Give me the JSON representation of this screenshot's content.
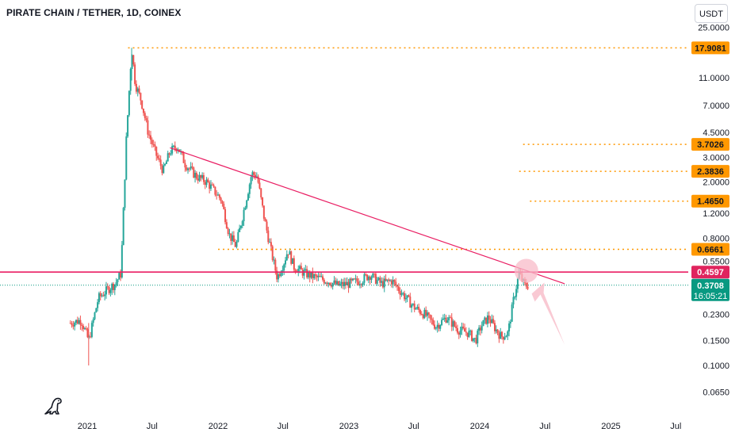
{
  "header": {
    "title": "PIRATE CHAIN / TETHER, 1D, COINEX",
    "unit_button": "USDT"
  },
  "colors": {
    "up": "#26a69a",
    "down": "#ef5350",
    "trendline": "#e91e63",
    "dotted_levels": "#ff9800",
    "last_price": "#089981",
    "arrow": "#f8bbc8"
  },
  "icons": [
    "dinosaur-logo-icon"
  ],
  "chart_data": {
    "type": "candlestick",
    "y_scale": "log",
    "x_ticks": [
      "2021",
      "Jul",
      "2022",
      "Jul",
      "2023",
      "Jul",
      "2024",
      "Jul",
      "2025",
      "Jul"
    ],
    "y_ticks": [
      "25.0000",
      "11.0000",
      "7.0000",
      "4.5000",
      "3.0000",
      "2.0000",
      "1.2000",
      "0.8000",
      "0.5500",
      "0.2300",
      "0.1500",
      "0.1000",
      "0.0650"
    ],
    "price_labels": [
      {
        "text": "17.9081",
        "value": 17.9081,
        "kind": "dotted-level"
      },
      {
        "text": "3.7026",
        "value": 3.7026,
        "kind": "dotted-level"
      },
      {
        "text": "2.3836",
        "value": 2.3836,
        "kind": "dotted-level"
      },
      {
        "text": "1.4650",
        "value": 1.465,
        "kind": "dotted-level"
      },
      {
        "text": "0.6661",
        "value": 0.6661,
        "kind": "dotted-level"
      },
      {
        "text": "0.4597",
        "value": 0.4597,
        "kind": "horizontal-line"
      },
      {
        "text": "0.3708",
        "value": 0.3708,
        "kind": "last-price",
        "sublabel": "16:05:21"
      }
    ],
    "trendline": {
      "start": {
        "date": "2021-08-20",
        "price": 3.5
      },
      "end": {
        "date": "2024-08-25",
        "price": 0.38
      }
    },
    "price_path": [
      [
        "2020-11-15",
        0.2
      ],
      [
        "2020-12-15",
        0.21
      ],
      [
        "2021-01-05",
        0.15
      ],
      [
        "2021-02-01",
        0.3
      ],
      [
        "2021-03-01",
        0.35
      ],
      [
        "2021-03-20",
        0.38
      ],
      [
        "2021-04-05",
        0.45
      ],
      [
        "2021-04-20",
        4.0
      ],
      [
        "2021-05-05",
        17.9
      ],
      [
        "2021-05-15",
        10.0
      ],
      [
        "2021-06-01",
        7.5
      ],
      [
        "2021-06-20",
        4.5
      ],
      [
        "2021-07-15",
        3.0
      ],
      [
        "2021-08-01",
        2.4
      ],
      [
        "2021-08-20",
        3.3
      ],
      [
        "2021-09-10",
        3.6
      ],
      [
        "2021-10-01",
        2.7
      ],
      [
        "2021-11-01",
        2.2
      ],
      [
        "2021-12-01",
        2.0
      ],
      [
        "2022-01-10",
        1.5
      ],
      [
        "2022-02-01",
        0.85
      ],
      [
        "2022-02-20",
        0.7
      ],
      [
        "2022-03-15",
        1.3
      ],
      [
        "2022-04-05",
        2.3
      ],
      [
        "2022-04-20",
        2.2
      ],
      [
        "2022-05-10",
        1.1
      ],
      [
        "2022-06-01",
        0.6
      ],
      [
        "2022-06-15",
        0.42
      ],
      [
        "2022-07-05",
        0.55
      ],
      [
        "2022-07-15",
        0.66
      ],
      [
        "2022-08-01",
        0.5
      ],
      [
        "2022-09-01",
        0.45
      ],
      [
        "2022-10-01",
        0.42
      ],
      [
        "2022-11-01",
        0.4
      ],
      [
        "2022-12-01",
        0.37
      ],
      [
        "2023-01-01",
        0.38
      ],
      [
        "2023-02-01",
        0.4
      ],
      [
        "2023-03-01",
        0.44
      ],
      [
        "2023-04-01",
        0.38
      ],
      [
        "2023-05-01",
        0.4
      ],
      [
        "2023-06-01",
        0.32
      ],
      [
        "2023-07-01",
        0.26
      ],
      [
        "2023-08-01",
        0.23
      ],
      [
        "2023-09-01",
        0.19
      ],
      [
        "2023-10-01",
        0.22
      ],
      [
        "2023-11-01",
        0.18
      ],
      [
        "2023-12-01",
        0.17
      ],
      [
        "2023-12-20",
        0.15
      ],
      [
        "2024-01-05",
        0.19
      ],
      [
        "2024-01-25",
        0.22
      ],
      [
        "2024-02-15",
        0.18
      ],
      [
        "2024-03-01",
        0.16
      ],
      [
        "2024-03-20",
        0.17
      ],
      [
        "2024-04-05",
        0.3
      ],
      [
        "2024-04-20",
        0.45
      ],
      [
        "2024-05-05",
        0.37
      ],
      [
        "2024-05-15",
        0.3708
      ]
    ]
  }
}
